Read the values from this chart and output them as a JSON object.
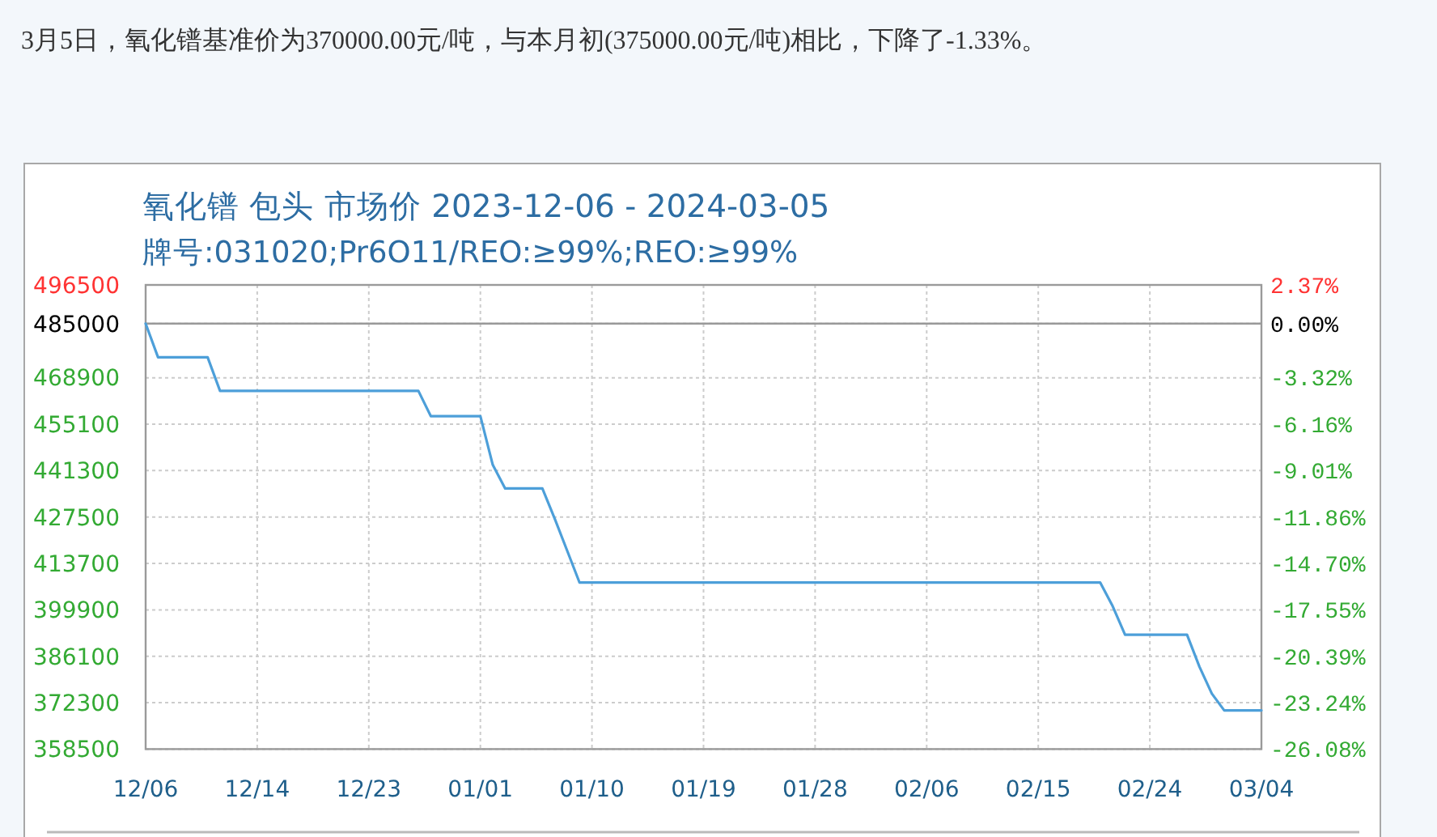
{
  "chart_data": {
    "type": "line",
    "title": "氧化镨 包头 市场价 2023-12-06 - 2024-03-05",
    "subtitle": "牌号:031020;Pr6O11/REO:≥99%;REO:≥99%",
    "annotations": [
      "3月5日，氧化镨基准价为370000.00元/吨，与本月初(375000.00元/吨)相比，下降了-1.33%。"
    ],
    "categories": [
      "12/06",
      null,
      null,
      null,
      null,
      null,
      null,
      null,
      null,
      "12/14",
      null,
      null,
      null,
      null,
      null,
      null,
      null,
      null,
      "12/23",
      null,
      null,
      null,
      null,
      null,
      null,
      null,
      null,
      "01/01",
      null,
      null,
      null,
      null,
      null,
      null,
      null,
      null,
      "01/10",
      null,
      null,
      null,
      null,
      null,
      null,
      null,
      null,
      "01/19",
      null,
      null,
      null,
      null,
      null,
      null,
      null,
      null,
      "01/28",
      null,
      null,
      null,
      null,
      null,
      null,
      null,
      null,
      "02/06",
      null,
      null,
      null,
      null,
      null,
      null,
      null,
      null,
      "02/15",
      null,
      null,
      null,
      null,
      null,
      null,
      null,
      null,
      "02/24",
      null,
      null,
      null,
      null,
      null,
      null,
      null,
      null,
      "03/04"
    ],
    "series": [
      {
        "color": "#4d9fd9",
        "values": [
          485000,
          475000,
          475000,
          475000,
          475000,
          475000,
          465000,
          465000,
          465000,
          465000,
          465000,
          465000,
          465000,
          465000,
          465000,
          465000,
          465000,
          465000,
          465000,
          465000,
          465000,
          465000,
          465000,
          457500,
          457500,
          457500,
          457500,
          457500,
          443000,
          436000,
          436000,
          436000,
          436000,
          427000,
          417500,
          408000,
          408000,
          408000,
          408000,
          408000,
          408000,
          408000,
          408000,
          408000,
          408000,
          408000,
          408000,
          408000,
          408000,
          408000,
          408000,
          408000,
          408000,
          408000,
          408000,
          408000,
          408000,
          408000,
          408000,
          408000,
          408000,
          408000,
          408000,
          408000,
          408000,
          408000,
          408000,
          408000,
          408000,
          408000,
          408000,
          408000,
          408000,
          408000,
          408000,
          408000,
          408000,
          408000,
          401000,
          392500,
          392500,
          392500,
          392500,
          392500,
          392500,
          383000,
          375000,
          370000,
          370000,
          370000,
          370000
        ]
      }
    ],
    "ylim": [
      358500,
      496500
    ],
    "yticks": [
      358500,
      372300,
      386100,
      399900,
      413700,
      427500,
      441300,
      455100,
      468900,
      485000,
      496500
    ],
    "y2lim": [
      -26.08,
      2.37
    ],
    "y2ticks": [
      {
        "value": -26.08,
        "label": "-26.08%"
      },
      {
        "value": -23.24,
        "label": "-23.24%"
      },
      {
        "value": -20.39,
        "label": "-20.39%"
      },
      {
        "value": -17.55,
        "label": "-17.55%"
      },
      {
        "value": -14.7,
        "label": "-14.70%"
      },
      {
        "value": -11.86,
        "label": "-11.86%"
      },
      {
        "value": -9.01,
        "label": "-9.01%"
      },
      {
        "value": -6.16,
        "label": "-6.16%"
      },
      {
        "value": -3.32,
        "label": "-3.32%"
      },
      {
        "value": 0,
        "label": "0.00%"
      },
      {
        "value": 2.37,
        "label": "2.37%"
      }
    ],
    "ref_lines": [
      {
        "axis": "y",
        "value": 485000,
        "color": "#999999"
      }
    ],
    "grid": true
  }
}
